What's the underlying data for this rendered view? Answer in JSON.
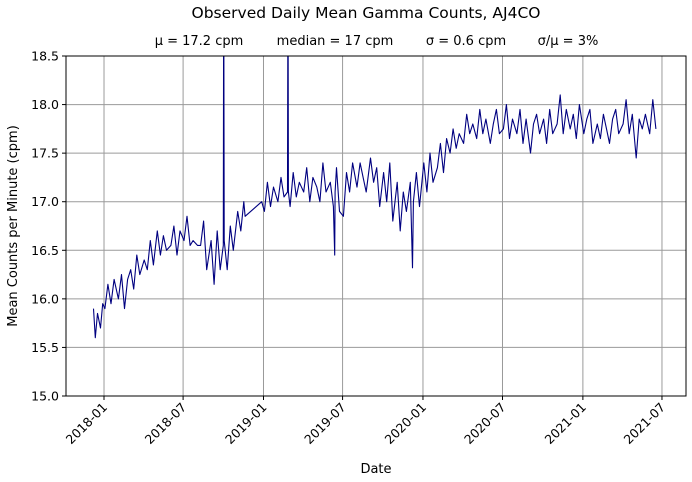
{
  "chart_data": {
    "type": "line",
    "title": "Observed Daily Mean Gamma Counts, AJ4CO",
    "subtitle": [
      "μ = 17.2 cpm",
      "median = 17 cpm",
      "σ = 0.6 cpm",
      "σ/μ = 3%"
    ],
    "xlabel": "Date",
    "ylabel": "Mean Counts per Minute (cpm)",
    "ylim": [
      15.0,
      18.5
    ],
    "xlim": [
      "2017-10-06",
      "2021-08-25"
    ],
    "yticks": [
      "15.0",
      "15.5",
      "16.0",
      "16.5",
      "17.0",
      "17.5",
      "18.0",
      "18.5"
    ],
    "xticks": [
      "2018-01",
      "2018-07",
      "2019-01",
      "2019-07",
      "2020-01",
      "2020-07",
      "2021-01",
      "2021-07"
    ],
    "grid": true,
    "line_color": "#000080",
    "series": [
      {
        "x": [
          "2017-12-08",
          "2017-12-12",
          "2017-12-17",
          "2017-12-24",
          "2017-12-29",
          "2018-01-03",
          "2018-01-10",
          "2018-01-17",
          "2018-01-24",
          "2018-02-03",
          "2018-02-10",
          "2018-02-17",
          "2018-02-24",
          "2018-03-03",
          "2018-03-10",
          "2018-03-17",
          "2018-03-24",
          "2018-04-03",
          "2018-04-10",
          "2018-04-17",
          "2018-04-24",
          "2018-05-03",
          "2018-05-10",
          "2018-05-17",
          "2018-05-24",
          "2018-06-03",
          "2018-06-10",
          "2018-06-17",
          "2018-06-24",
          "2018-07-03",
          "2018-07-10",
          "2018-07-17",
          "2018-07-24",
          "2018-08-03",
          "2018-08-10",
          "2018-08-17",
          "2018-08-24",
          "2018-09-03",
          "2018-09-10",
          "2018-09-17",
          "2018-09-24",
          "2018-10-01",
          "2018-10-02",
          "2018-10-03",
          "2018-10-10",
          "2018-10-17",
          "2018-10-24",
          "2018-11-03",
          "2018-11-10",
          "2018-11-17",
          "2018-11-20",
          "2018-12-28",
          "2019-01-03",
          "2019-01-10",
          "2019-01-17",
          "2019-01-24",
          "2019-02-03",
          "2019-02-10",
          "2019-02-17",
          "2019-02-25",
          "2019-02-26",
          "2019-02-27",
          "2019-03-03",
          "2019-03-10",
          "2019-03-17",
          "2019-03-24",
          "2019-04-03",
          "2019-04-10",
          "2019-04-17",
          "2019-04-24",
          "2019-05-03",
          "2019-05-10",
          "2019-05-17",
          "2019-05-24",
          "2019-06-03",
          "2019-06-10",
          "2019-06-13",
          "2019-06-14",
          "2019-06-17",
          "2019-06-24",
          "2019-07-03",
          "2019-07-10",
          "2019-07-17",
          "2019-07-24",
          "2019-08-03",
          "2019-08-10",
          "2019-08-17",
          "2019-08-24",
          "2019-09-03",
          "2019-09-10",
          "2019-09-17",
          "2019-09-24",
          "2019-10-03",
          "2019-10-10",
          "2019-10-17",
          "2019-10-24",
          "2019-11-03",
          "2019-11-10",
          "2019-11-17",
          "2019-11-24",
          "2019-12-03",
          "2019-12-08",
          "2019-12-10",
          "2019-12-17",
          "2019-12-24",
          "2020-01-03",
          "2020-01-10",
          "2020-01-17",
          "2020-01-24",
          "2020-02-03",
          "2020-02-10",
          "2020-02-17",
          "2020-02-24",
          "2020-03-03",
          "2020-03-10",
          "2020-03-17",
          "2020-03-24",
          "2020-04-03",
          "2020-04-10",
          "2020-04-17",
          "2020-04-24",
          "2020-05-03",
          "2020-05-10",
          "2020-05-17",
          "2020-05-24",
          "2020-06-03",
          "2020-06-10",
          "2020-06-17",
          "2020-06-24",
          "2020-07-03",
          "2020-07-10",
          "2020-07-17",
          "2020-07-24",
          "2020-08-03",
          "2020-08-10",
          "2020-08-17",
          "2020-08-24",
          "2020-09-03",
          "2020-09-10",
          "2020-09-17",
          "2020-09-24",
          "2020-10-03",
          "2020-10-10",
          "2020-10-17",
          "2020-10-24",
          "2020-11-03",
          "2020-11-10",
          "2020-11-17",
          "2020-11-24",
          "2020-12-03",
          "2020-12-10",
          "2020-12-17",
          "2020-12-24",
          "2021-01-03",
          "2021-01-10",
          "2021-01-17",
          "2021-01-24",
          "2021-02-03",
          "2021-02-10",
          "2021-02-17",
          "2021-02-24",
          "2021-03-03",
          "2021-03-10",
          "2021-03-17",
          "2021-03-24",
          "2021-04-03",
          "2021-04-10",
          "2021-04-17",
          "2021-04-24",
          "2021-05-03",
          "2021-05-10",
          "2021-05-17",
          "2021-05-24",
          "2021-06-03",
          "2021-06-10",
          "2021-06-17"
        ],
        "y": [
          15.9,
          15.6,
          15.85,
          15.7,
          15.95,
          15.9,
          16.15,
          15.95,
          16.2,
          16.0,
          16.25,
          15.9,
          16.2,
          16.3,
          16.1,
          16.45,
          16.25,
          16.4,
          16.3,
          16.6,
          16.35,
          16.7,
          16.45,
          16.65,
          16.5,
          16.55,
          16.75,
          16.45,
          16.7,
          16.6,
          16.85,
          16.55,
          16.6,
          16.55,
          16.55,
          16.8,
          16.3,
          16.6,
          16.15,
          16.7,
          16.3,
          16.55,
          19.5,
          16.6,
          16.3,
          16.75,
          16.5,
          16.9,
          16.7,
          17.0,
          16.85,
          17.0,
          16.9,
          17.2,
          16.95,
          17.15,
          17.0,
          17.25,
          17.05,
          17.1,
          19.5,
          17.1,
          16.95,
          17.3,
          17.05,
          17.2,
          17.1,
          17.35,
          17.0,
          17.25,
          17.15,
          17.0,
          17.4,
          17.1,
          17.2,
          16.95,
          16.45,
          17.1,
          17.35,
          16.9,
          16.85,
          17.3,
          17.1,
          17.4,
          17.15,
          17.4,
          17.25,
          17.1,
          17.45,
          17.2,
          17.35,
          16.95,
          17.3,
          17.0,
          17.4,
          16.8,
          17.2,
          16.7,
          17.1,
          16.9,
          17.2,
          16.32,
          17.0,
          17.3,
          16.95,
          17.4,
          17.1,
          17.5,
          17.2,
          17.35,
          17.6,
          17.3,
          17.65,
          17.5,
          17.75,
          17.55,
          17.7,
          17.6,
          17.9,
          17.7,
          17.8,
          17.65,
          17.95,
          17.7,
          17.85,
          17.6,
          17.8,
          17.95,
          17.7,
          17.75,
          18.0,
          17.65,
          17.85,
          17.7,
          17.95,
          17.6,
          17.85,
          17.5,
          17.8,
          17.9,
          17.7,
          17.85,
          17.6,
          17.95,
          17.7,
          17.8,
          18.1,
          17.7,
          17.95,
          17.75,
          17.9,
          17.65,
          18.0,
          17.7,
          17.85,
          17.95,
          17.6,
          17.8,
          17.65,
          17.9,
          17.75,
          17.6,
          17.85,
          17.95,
          17.7,
          17.8,
          18.05,
          17.7,
          17.9,
          17.45,
          17.85,
          17.75,
          17.9,
          17.7,
          18.05,
          17.75
        ]
      }
    ]
  }
}
